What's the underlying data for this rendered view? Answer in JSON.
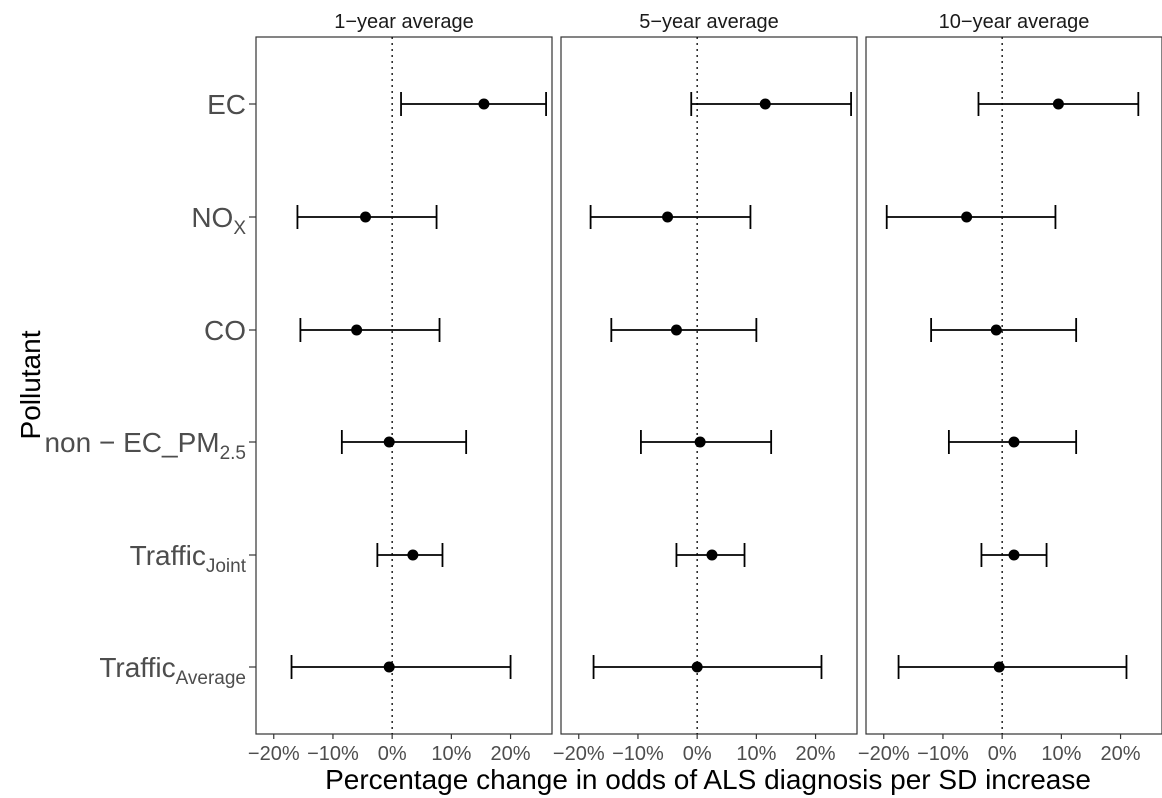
{
  "chart_data": {
    "type": "forest",
    "xlabel": "Percentage change in odds of ALS diagnosis per SD increase",
    "ylabel": "Pollutant",
    "xlim": [
      -23,
      27
    ],
    "x_ticks": [
      -20,
      -10,
      0,
      10,
      20
    ],
    "x_tick_labels": [
      "−20%",
      "−10%",
      "0%",
      "10%",
      "20%"
    ],
    "reference_line": 0,
    "pollutants": [
      {
        "base": "EC",
        "sub": ""
      },
      {
        "base": "NO",
        "sub": "X"
      },
      {
        "base": "CO",
        "sub": ""
      },
      {
        "base": "non − EC_PM",
        "sub": "2.5"
      },
      {
        "base": "Traffic",
        "sub": "Joint"
      },
      {
        "base": "Traffic",
        "sub": "Average"
      }
    ],
    "panels": [
      {
        "title": "1−year average",
        "estimates": [
          {
            "est": 15.5,
            "lo": 1.5,
            "hi": 26.0
          },
          {
            "est": -4.5,
            "lo": -16.0,
            "hi": 7.5
          },
          {
            "est": -6.0,
            "lo": -15.5,
            "hi": 8.0
          },
          {
            "est": -0.5,
            "lo": -8.5,
            "hi": 12.5
          },
          {
            "est": 3.5,
            "lo": -2.5,
            "hi": 8.5
          },
          {
            "est": -0.5,
            "lo": -17.0,
            "hi": 20.0
          }
        ]
      },
      {
        "title": "5−year average",
        "estimates": [
          {
            "est": 11.5,
            "lo": -1.0,
            "hi": 26.0
          },
          {
            "est": -5.0,
            "lo": -18.0,
            "hi": 9.0
          },
          {
            "est": -3.5,
            "lo": -14.5,
            "hi": 10.0
          },
          {
            "est": 0.5,
            "lo": -9.5,
            "hi": 12.5
          },
          {
            "est": 2.5,
            "lo": -3.5,
            "hi": 8.0
          },
          {
            "est": 0.0,
            "lo": -17.5,
            "hi": 21.0
          }
        ]
      },
      {
        "title": "10−year average",
        "estimates": [
          {
            "est": 9.5,
            "lo": -4.0,
            "hi": 23.0
          },
          {
            "est": -6.0,
            "lo": -19.5,
            "hi": 9.0
          },
          {
            "est": -1.0,
            "lo": -12.0,
            "hi": 12.5
          },
          {
            "est": 2.0,
            "lo": -9.0,
            "hi": 12.5
          },
          {
            "est": 2.0,
            "lo": -3.5,
            "hi": 7.5
          },
          {
            "est": -0.5,
            "lo": -17.5,
            "hi": 21.0
          }
        ]
      }
    ]
  }
}
